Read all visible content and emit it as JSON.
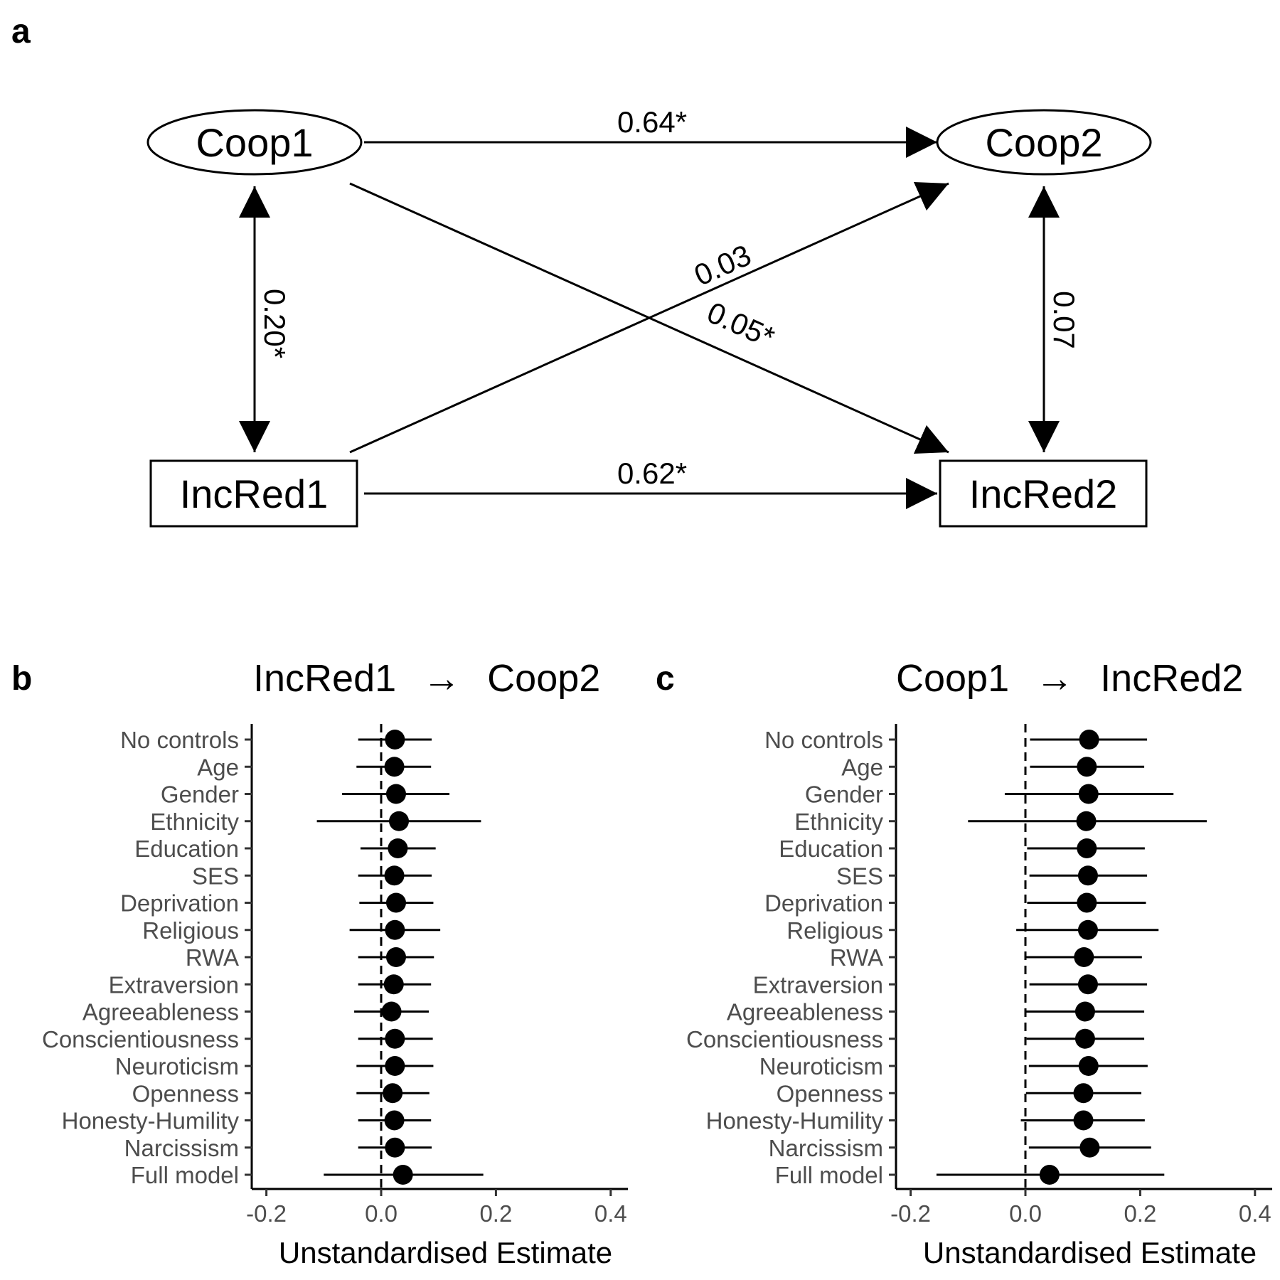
{
  "panel_a": {
    "letter": "a",
    "nodes": {
      "coop1": "Coop1",
      "coop2": "Coop2",
      "incred1": "IncRed1",
      "incred2": "IncRed2"
    },
    "paths": {
      "coop1_coop2": "0.64*",
      "incred1_incred2": "0.62*",
      "coop1_incred1": "0.20*",
      "coop2_incred2": "0.07",
      "incred1_coop2": "0.03",
      "coop1_incred2": "0.05*"
    }
  },
  "panel_b": {
    "letter": "b",
    "title_from": "IncRed1",
    "title_arrow": "→",
    "title_to": "Coop2"
  },
  "panel_c": {
    "letter": "c",
    "title_from": "Coop1",
    "title_arrow": "→",
    "title_to": "IncRed2"
  },
  "chart_data": [
    {
      "type": "scatter",
      "panel": "b",
      "title": "IncRed1 → Coop2",
      "xlabel": "Unstandardised Estimate",
      "ylabel": "",
      "xlim": [
        -0.23,
        0.43
      ],
      "xticks": [
        -0.2,
        0.0,
        0.2,
        0.4
      ],
      "xtick_labels": [
        "-0.2",
        "0.0",
        "0.2",
        "0.4"
      ],
      "reference_line": 0,
      "categories": [
        "No controls",
        "Age",
        "Gender",
        "Ethnicity",
        "Education",
        "SES",
        "Deprivation",
        "Religious",
        "RWA",
        "Extraversion",
        "Agreeableness",
        "Conscientiousness",
        "Neuroticism",
        "Openness",
        "Honesty-Humility",
        "Narcissism",
        "Full model"
      ],
      "estimate": [
        0.024,
        0.023,
        0.026,
        0.031,
        0.029,
        0.023,
        0.026,
        0.024,
        0.026,
        0.022,
        0.018,
        0.024,
        0.024,
        0.02,
        0.023,
        0.024,
        0.038
      ],
      "ci_low": [
        -0.04,
        -0.043,
        -0.068,
        -0.112,
        -0.036,
        -0.04,
        -0.038,
        -0.055,
        -0.04,
        -0.04,
        -0.047,
        -0.04,
        -0.043,
        -0.043,
        -0.04,
        -0.04,
        -0.1
      ],
      "ci_high": [
        0.088,
        0.087,
        0.119,
        0.174,
        0.095,
        0.088,
        0.091,
        0.103,
        0.092,
        0.087,
        0.083,
        0.09,
        0.091,
        0.084,
        0.087,
        0.088,
        0.178
      ]
    },
    {
      "type": "scatter",
      "panel": "c",
      "title": "Coop1 → IncRed2",
      "xlabel": "Unstandardised Estimate",
      "ylabel": "",
      "xlim": [
        -0.23,
        0.43
      ],
      "xticks": [
        -0.2,
        0.0,
        0.2,
        0.4
      ],
      "xtick_labels": [
        "-0.2",
        "0.0",
        "0.2",
        "0.4"
      ],
      "reference_line": 0,
      "categories": [
        "No controls",
        "Age",
        "Gender",
        "Ethnicity",
        "Education",
        "SES",
        "Deprivation",
        "Religious",
        "RWA",
        "Extraversion",
        "Agreeableness",
        "Conscientiousness",
        "Neuroticism",
        "Openness",
        "Honesty-Humility",
        "Narcissism",
        "Full model"
      ],
      "estimate": [
        0.111,
        0.107,
        0.11,
        0.106,
        0.107,
        0.109,
        0.107,
        0.109,
        0.102,
        0.109,
        0.104,
        0.104,
        0.11,
        0.101,
        0.101,
        0.112,
        0.042
      ],
      "ci_low": [
        0.008,
        0.008,
        -0.036,
        -0.1,
        0.003,
        0.007,
        0.003,
        -0.016,
        0.001,
        0.007,
        0.0,
        0.002,
        0.006,
        0.001,
        -0.008,
        0.006,
        -0.155
      ],
      "ci_high": [
        0.212,
        0.207,
        0.258,
        0.316,
        0.208,
        0.212,
        0.21,
        0.232,
        0.203,
        0.212,
        0.207,
        0.207,
        0.213,
        0.202,
        0.208,
        0.219,
        0.242
      ]
    }
  ]
}
